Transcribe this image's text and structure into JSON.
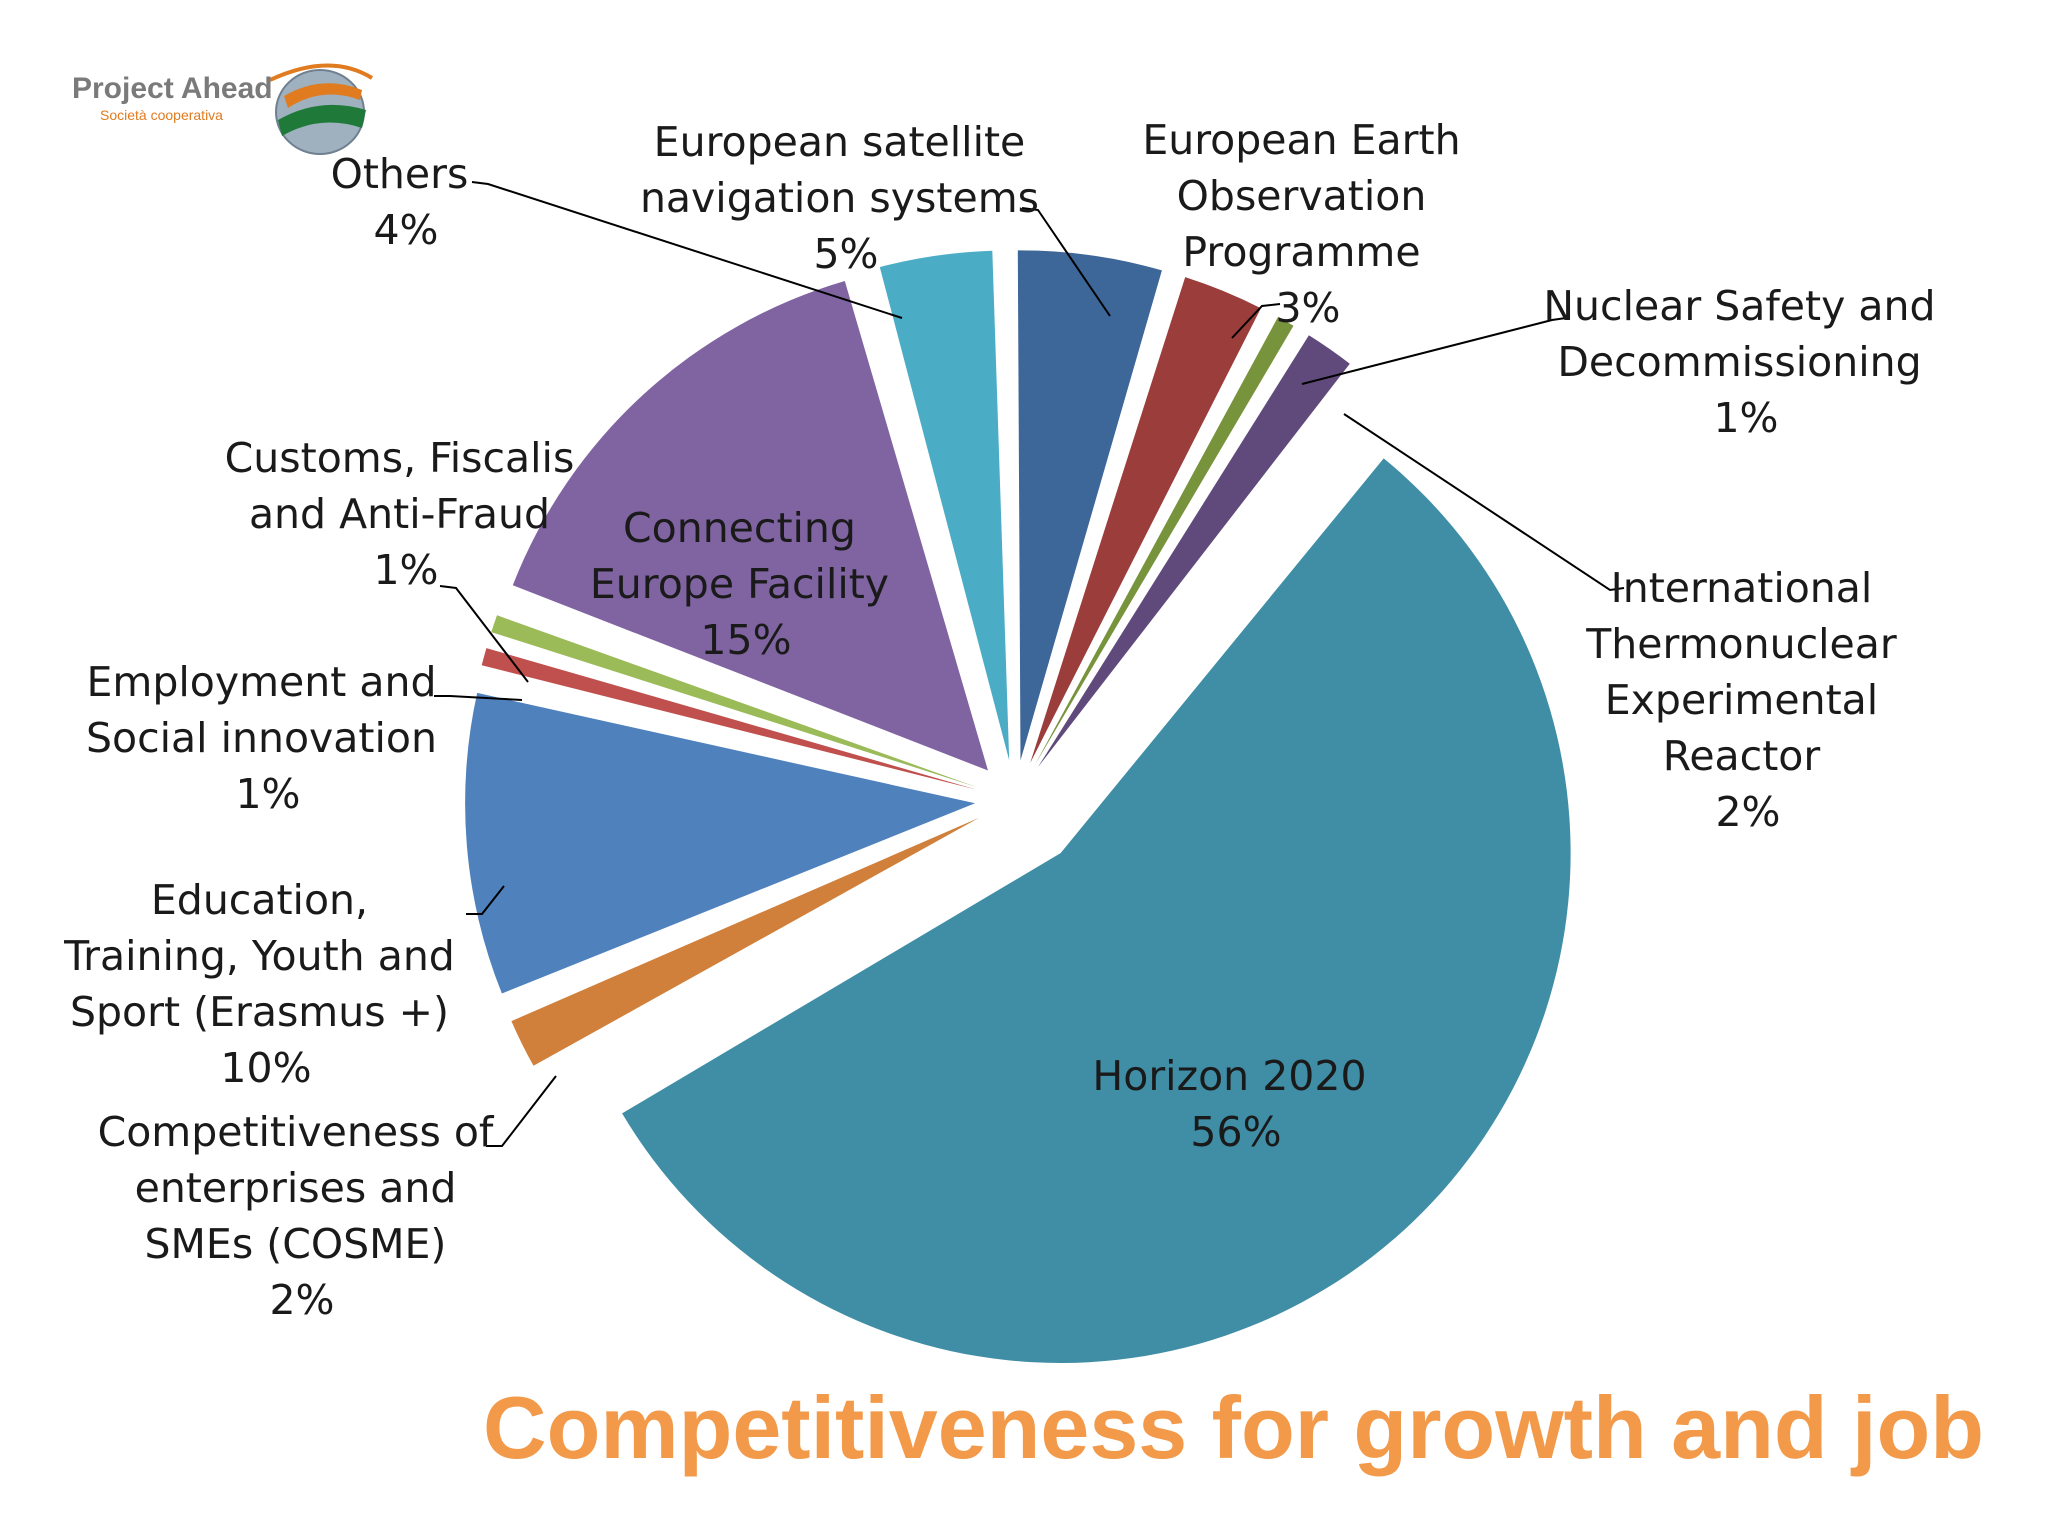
{
  "logo": {
    "name": "Project Ahead",
    "subtitle": "Società cooperativa"
  },
  "title": "Competitiveness for growth and job",
  "colors": {
    "title": "#f29a4a"
  },
  "chart_data": {
    "type": "pie",
    "exploded": true,
    "title": "Competitiveness for growth and job",
    "slices": [
      {
        "name": "Horizon 2020",
        "lines": [
          "Horizon 2020"
        ],
        "value": 56,
        "label": "56%",
        "color": "#3f8ea6"
      },
      {
        "name": "Competitiveness of enterprises and SMEs (COSME)",
        "lines": [
          "Competitiveness of",
          "enterprises and",
          "SMEs (COSME)"
        ],
        "value": 2,
        "label": "2%",
        "color": "#d0803a"
      },
      {
        "name": "Education, Training, Youth and Sport (Erasmus +)",
        "lines": [
          "Education,",
          "Training, Youth and",
          "Sport (Erasmus +)"
        ],
        "value": 10,
        "label": "10%",
        "color": "#4f81bd"
      },
      {
        "name": "Employment and Social innovation",
        "lines": [
          "Employment and",
          "Social innovation"
        ],
        "value": 1,
        "label": "1%",
        "color": "#c0504d"
      },
      {
        "name": "Customs, Fiscalis and Anti-Fraud",
        "lines": [
          "Customs, Fiscalis",
          "and Anti-Fraud"
        ],
        "value": 1,
        "label": "1%",
        "color": "#9bbb59"
      },
      {
        "name": "Connecting Europe Facility",
        "lines": [
          "Connecting",
          "Europe Facility"
        ],
        "value": 15,
        "label": "15%",
        "color": "#8064a2"
      },
      {
        "name": "Others",
        "lines": [
          "Others"
        ],
        "value": 4,
        "label": "4%",
        "color": "#4bacc6"
      },
      {
        "name": "European satellite navigation systems",
        "lines": [
          "European satellite",
          "navigation systems"
        ],
        "value": 5,
        "label": "5%",
        "color": "#3d6699"
      },
      {
        "name": "European Earth Observation Programme",
        "lines": [
          "European Earth",
          "Observation",
          "Programme"
        ],
        "value": 3,
        "label": "3%",
        "color": "#9b3d3b"
      },
      {
        "name": "Nuclear Safety and Decommissioning",
        "lines": [
          "Nuclear Safety and",
          "Decommissioning"
        ],
        "value": 1,
        "label": "1%",
        "color": "#77933c"
      },
      {
        "name": "International Thermonuclear Experimental Reactor",
        "lines": [
          "International",
          "Thermonuclear",
          "Experimental",
          "Reactor"
        ],
        "value": 2,
        "label": "2%",
        "color": "#604a7b"
      }
    ]
  }
}
